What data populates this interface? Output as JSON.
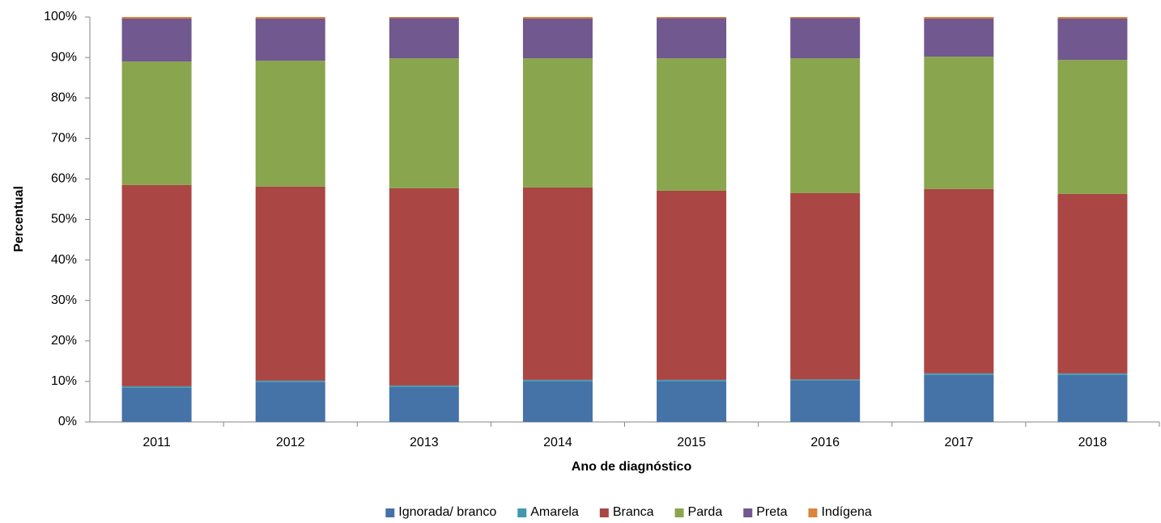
{
  "chart_data": {
    "type": "stacked_bar",
    "x_label": "Ano de diagnóstico",
    "y_label": "Percentual",
    "categories": [
      "2011",
      "2012",
      "2013",
      "2014",
      "2015",
      "2016",
      "2017",
      "2018"
    ],
    "series": [
      {
        "name": "Ignorada/ branco",
        "color": "#4572a7",
        "values": [
          8.4,
          9.8,
          8.6,
          10.0,
          10.0,
          10.2,
          11.6,
          11.6
        ]
      },
      {
        "name": "Amarela",
        "color": "#4198af",
        "values": [
          0.4,
          0.4,
          0.4,
          0.4,
          0.4,
          0.3,
          0.4,
          0.4
        ]
      },
      {
        "name": "Branca",
        "color": "#aa4643",
        "values": [
          49.7,
          47.9,
          48.7,
          47.5,
          46.7,
          46.0,
          45.5,
          44.3
        ]
      },
      {
        "name": "Parda",
        "color": "#89a54e",
        "values": [
          30.5,
          31.1,
          32.1,
          31.9,
          32.7,
          33.3,
          32.7,
          33.1
        ]
      },
      {
        "name": "Preta",
        "color": "#71588f",
        "values": [
          10.6,
          10.4,
          9.9,
          9.8,
          9.9,
          9.9,
          9.4,
          10.2
        ]
      },
      {
        "name": "Indígena",
        "color": "#db843d",
        "values": [
          0.4,
          0.4,
          0.3,
          0.4,
          0.3,
          0.3,
          0.4,
          0.4
        ]
      }
    ],
    "ylim": [
      0,
      100
    ],
    "yticks": [
      {
        "value": 0,
        "label": "0%"
      },
      {
        "value": 10,
        "label": "10%"
      },
      {
        "value": 20,
        "label": "20%"
      },
      {
        "value": 30,
        "label": "30%"
      },
      {
        "value": 40,
        "label": "40%"
      },
      {
        "value": 50,
        "label": "50%"
      },
      {
        "value": 60,
        "label": "60%"
      },
      {
        "value": 70,
        "label": "70%"
      },
      {
        "value": 80,
        "label": "80%"
      },
      {
        "value": 90,
        "label": "90%"
      },
      {
        "value": 100,
        "label": "100%"
      }
    ],
    "grid": false,
    "legend": "bottom"
  }
}
